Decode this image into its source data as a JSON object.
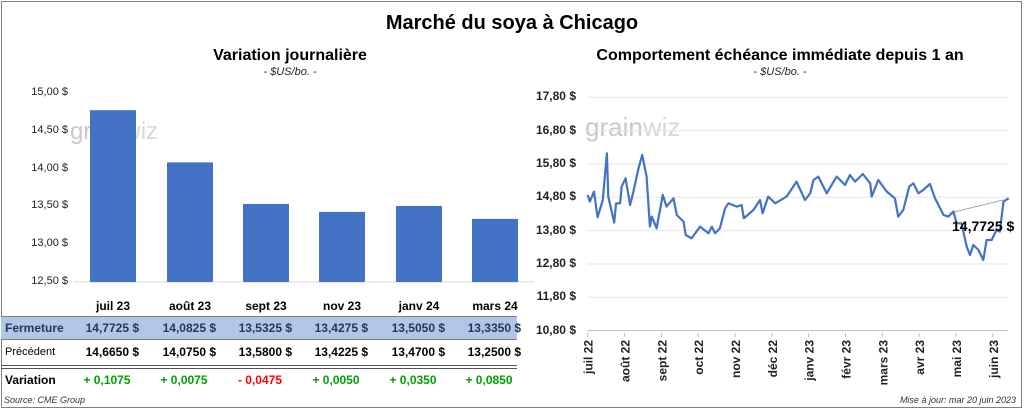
{
  "title": "Marché du soya à Chicago",
  "left": {
    "subtitle": "Variation journalière",
    "unit": "- $US/bo. -",
    "watermark": "grainwiz"
  },
  "right": {
    "subtitle": "Comportement  échéance immédiate depuis 1 an",
    "unit": "- $US/bo. -",
    "watermark": "grainwiz",
    "last_label": "14,7725 $"
  },
  "table": {
    "row_labels": {
      "close": "Fermeture",
      "prev": "Précédent",
      "var": "Variation"
    },
    "close": [
      "14,7725  $",
      "14,0825  $",
      "13,5325  $",
      "13,4275  $",
      "13,5050  $",
      "13,3350  $"
    ],
    "prev": [
      "14,6650  $",
      "14,0750  $",
      "13,5800  $",
      "13,4225  $",
      "13,4700  $",
      "13,2500  $"
    ],
    "var": [
      "+ 0,1075",
      "+ 0,0075",
      "- 0,0475",
      "+ 0,0050",
      "+ 0,0350",
      "+ 0,0850"
    ]
  },
  "footer": {
    "source": "Source: CME Group",
    "updated": "Mise à jour: mar 20 juin 2023"
  },
  "colors": {
    "bar": "#4472c4",
    "line": "#4472c4",
    "pos": "#00a000",
    "neg": "#ff0000",
    "row_bg": "#b4c6e7",
    "row_text": "#1f3864"
  },
  "chart_data": [
    {
      "type": "bar",
      "title": "Variation journalière",
      "ylabel": "$US/bo.",
      "categories": [
        "juil 23",
        "août 23",
        "sept 23",
        "nov 23",
        "janv 24",
        "mars 24"
      ],
      "values": [
        14.7725,
        14.0825,
        13.5325,
        13.4275,
        13.505,
        13.335
      ],
      "ylim": [
        12.5,
        15.0
      ],
      "yticks": [
        "12,50 $",
        "13,00 $",
        "13,50 $",
        "14,00 $",
        "14,50 $",
        "15,00 $"
      ]
    },
    {
      "type": "line",
      "title": "Comportement  échéance immédiate depuis 1 an",
      "ylabel": "$US/bo.",
      "x_unit": "months since juil 22",
      "ylim": [
        10.8,
        17.8
      ],
      "yticks": [
        "10,80 $",
        "11,80 $",
        "12,80 $",
        "13,80 $",
        "14,80 $",
        "15,80 $",
        "16,80 $",
        "17,80 $"
      ],
      "xticks": [
        "juil 22",
        "août 22",
        "sept 22",
        "oct 22",
        "nov 22",
        "déc 22",
        "janv 23",
        "févr 23",
        "mars 23",
        "avr 23",
        "mai 23",
        "juin 23"
      ],
      "points": [
        [
          0,
          14.87
        ],
        [
          0.06,
          14.67
        ],
        [
          0.17,
          14.97
        ],
        [
          0.27,
          14.2
        ],
        [
          0.41,
          14.72
        ],
        [
          0.52,
          16.12
        ],
        [
          0.56,
          14.82
        ],
        [
          0.72,
          14.04
        ],
        [
          0.77,
          14.62
        ],
        [
          0.88,
          14.62
        ],
        [
          0.92,
          15.12
        ],
        [
          1.03,
          15.37
        ],
        [
          1.15,
          14.57
        ],
        [
          1.24,
          14.97
        ],
        [
          1.38,
          15.67
        ],
        [
          1.48,
          16.07
        ],
        [
          1.6,
          15.42
        ],
        [
          1.69,
          13.92
        ],
        [
          1.74,
          14.22
        ],
        [
          1.87,
          13.87
        ],
        [
          2.04,
          14.87
        ],
        [
          2.14,
          14.52
        ],
        [
          2.33,
          14.77
        ],
        [
          2.42,
          14.27
        ],
        [
          2.6,
          14.07
        ],
        [
          2.66,
          13.67
        ],
        [
          2.82,
          13.57
        ],
        [
          3.05,
          13.92
        ],
        [
          3.28,
          13.72
        ],
        [
          3.37,
          13.92
        ],
        [
          3.46,
          13.72
        ],
        [
          3.59,
          13.87
        ],
        [
          3.73,
          14.47
        ],
        [
          3.82,
          14.62
        ],
        [
          4.05,
          14.52
        ],
        [
          4.18,
          14.57
        ],
        [
          4.24,
          14.17
        ],
        [
          4.5,
          14.42
        ],
        [
          4.68,
          14.72
        ],
        [
          4.75,
          14.32
        ],
        [
          4.9,
          14.82
        ],
        [
          5.09,
          14.62
        ],
        [
          5.4,
          14.82
        ],
        [
          5.67,
          15.27
        ],
        [
          5.9,
          14.72
        ],
        [
          6.04,
          14.92
        ],
        [
          6.13,
          15.32
        ],
        [
          6.26,
          15.42
        ],
        [
          6.49,
          14.92
        ],
        [
          6.76,
          15.42
        ],
        [
          6.99,
          15.17
        ],
        [
          7.12,
          15.47
        ],
        [
          7.26,
          15.27
        ],
        [
          7.47,
          15.5
        ],
        [
          7.67,
          15.22
        ],
        [
          7.71,
          14.82
        ],
        [
          7.89,
          15.32
        ],
        [
          8.12,
          14.97
        ],
        [
          8.34,
          14.77
        ],
        [
          8.43,
          14.22
        ],
        [
          8.57,
          14.42
        ],
        [
          8.73,
          15.12
        ],
        [
          8.84,
          15.22
        ],
        [
          8.98,
          14.92
        ],
        [
          9.11,
          15.02
        ],
        [
          9.29,
          15.2
        ],
        [
          9.43,
          14.77
        ],
        [
          9.66,
          14.27
        ],
        [
          9.79,
          14.22
        ],
        [
          9.93,
          14.37
        ],
        [
          10.02,
          14.02
        ],
        [
          10.15,
          14.02
        ],
        [
          10.29,
          13.32
        ],
        [
          10.38,
          13.07
        ],
        [
          10.47,
          13.37
        ],
        [
          10.61,
          13.22
        ],
        [
          10.74,
          12.92
        ],
        [
          10.83,
          13.52
        ],
        [
          10.97,
          13.52
        ],
        [
          11.1,
          13.82
        ],
        [
          11.19,
          13.77
        ],
        [
          11.29,
          14.67
        ],
        [
          11.43,
          14.7725
        ]
      ]
    }
  ]
}
